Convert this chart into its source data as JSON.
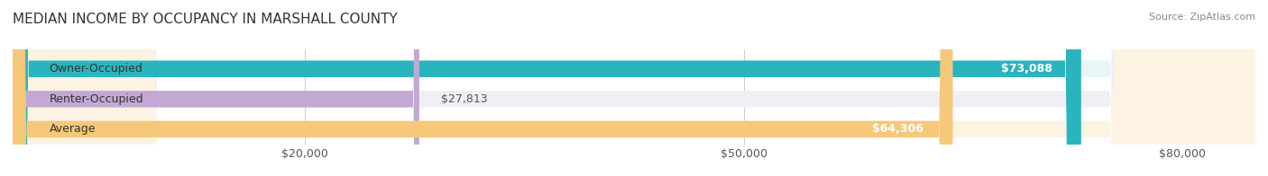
{
  "title": "MEDIAN INCOME BY OCCUPANCY IN MARSHALL COUNTY",
  "source": "Source: ZipAtlas.com",
  "categories": [
    "Owner-Occupied",
    "Renter-Occupied",
    "Average"
  ],
  "values": [
    73088,
    27813,
    64306
  ],
  "labels": [
    "$73,088",
    "$27,813",
    "$64,306"
  ],
  "bar_colors": [
    "#2ab5be",
    "#c4a8d4",
    "#f5c87a"
  ],
  "bar_bg_colors": [
    "#e8f6f7",
    "#f2eef6",
    "#fdf3e3"
  ],
  "xlim": [
    0,
    85000
  ],
  "xticks": [
    0,
    20000,
    50000,
    80000
  ],
  "xticklabels": [
    "",
    "$20,000",
    "$50,000",
    "$80,000"
  ],
  "title_fontsize": 11,
  "source_fontsize": 8,
  "label_fontsize": 9,
  "bar_label_fontsize": 9,
  "ylabel_fontsize": 9
}
